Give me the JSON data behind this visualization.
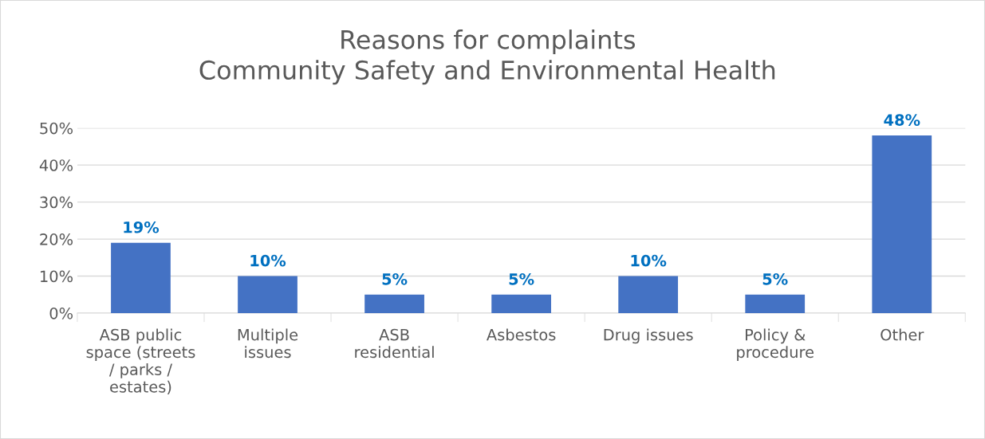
{
  "chart_data": {
    "type": "bar",
    "title": "Reasons for complaints\nCommunity Safety and Environmental Health",
    "categories": [
      "ASB public\nspace (streets\n/ parks /\nestates)",
      "Multiple\nissues",
      "ASB\nresidential",
      "Asbestos",
      "Drug issues",
      "Policy &\nprocedure",
      "Other"
    ],
    "values": [
      19,
      10,
      5,
      5,
      10,
      5,
      48
    ],
    "value_labels": [
      "19%",
      "10%",
      "5%",
      "5%",
      "10%",
      "5%",
      "48%"
    ],
    "color": "#4472c4",
    "ylim": [
      0,
      50
    ],
    "yticks": [
      {
        "value": 0,
        "label": "0%"
      },
      {
        "value": 10,
        "label": "10%"
      },
      {
        "value": 20,
        "label": "20%"
      },
      {
        "value": 30,
        "label": "30%"
      },
      {
        "value": 40,
        "label": "40%"
      },
      {
        "value": 50,
        "label": "50%"
      }
    ],
    "grid": "y",
    "legend": false
  }
}
